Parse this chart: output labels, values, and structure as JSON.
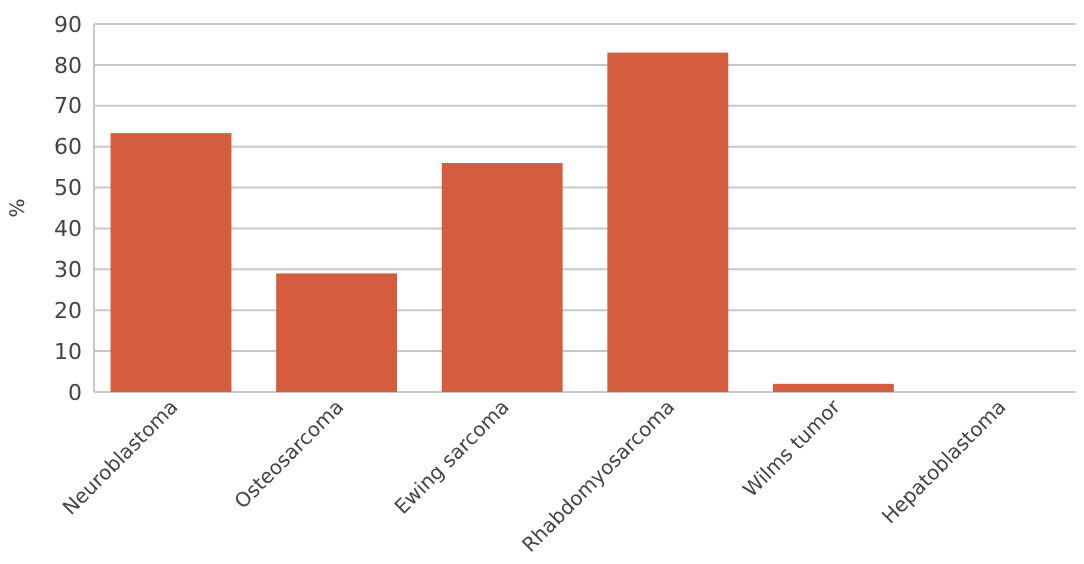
{
  "chart_data": {
    "type": "bar",
    "ylabel": "%",
    "categories": [
      "Neuroblastoma",
      "Osteosarcoma",
      "Ewing sarcoma",
      "Rhabdomyosarcoma",
      "Wilms tumor",
      "Hepatoblastoma"
    ],
    "values": [
      63.3,
      29,
      56,
      83,
      2,
      0
    ],
    "color": "#d35d3e",
    "ylim": [
      0,
      90
    ],
    "yticks": [
      0,
      10,
      20,
      30,
      40,
      50,
      60,
      70,
      80,
      90
    ],
    "grid": "y"
  }
}
